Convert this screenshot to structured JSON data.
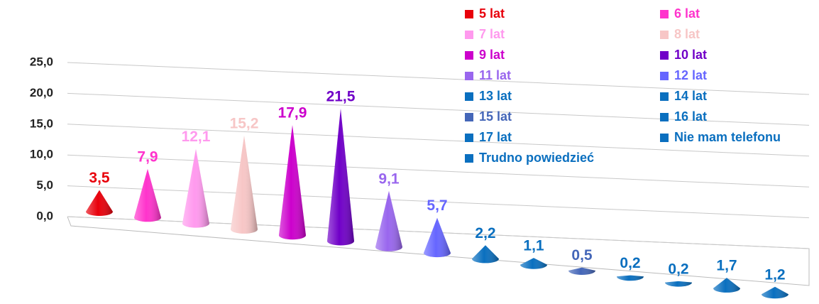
{
  "chart_data": {
    "type": "bar",
    "series": [
      {
        "name": "5 lat",
        "color": "#e8000b",
        "values": [
          3.5
        ],
        "value_labels": [
          "3,5"
        ]
      },
      {
        "name": "6 lat",
        "color": "#ff33cc",
        "values": [
          7.9
        ],
        "value_labels": [
          "7,9"
        ]
      },
      {
        "name": "7 lat",
        "color": "#ff99ee",
        "values": [
          12.1
        ],
        "value_labels": [
          "12,1"
        ]
      },
      {
        "name": "8 lat",
        "color": "#f7c6c6",
        "values": [
          15.2
        ],
        "value_labels": [
          "15,2"
        ]
      },
      {
        "name": "9 lat",
        "color": "#cc00cc",
        "values": [
          17.9
        ],
        "value_labels": [
          "17,9"
        ]
      },
      {
        "name": "10 lat",
        "color": "#7000c8",
        "values": [
          21.5
        ],
        "value_labels": [
          "21,5"
        ]
      },
      {
        "name": "11 lat",
        "color": "#9966ee",
        "values": [
          9.1
        ],
        "value_labels": [
          "9,1"
        ]
      },
      {
        "name": "12 lat",
        "color": "#6666ff",
        "values": [
          5.7
        ],
        "value_labels": [
          "5,7"
        ]
      },
      {
        "name": "13 lat",
        "color": "#0a6fbf",
        "values": [
          2.2
        ],
        "value_labels": [
          "2,2"
        ]
      },
      {
        "name": "14 lat",
        "color": "#0a6fbf",
        "values": [
          1.1
        ],
        "value_labels": [
          "1,1"
        ]
      },
      {
        "name": "15 lat",
        "color": "#4466b8",
        "values": [
          0.5
        ],
        "value_labels": [
          "0,5"
        ]
      },
      {
        "name": "16 lat",
        "color": "#0a6fbf",
        "values": [
          0.2
        ],
        "value_labels": [
          "0,2"
        ]
      },
      {
        "name": "17 lat",
        "color": "#0a6fbf",
        "values": [
          0.2
        ],
        "value_labels": [
          "0,2"
        ]
      },
      {
        "name": "Nie mam telefonu",
        "color": "#0a6fbf",
        "values": [
          1.7
        ],
        "value_labels": [
          "1,7"
        ]
      },
      {
        "name": "Trudno powiedzieć",
        "color": "#0a6fbf",
        "values": [
          1.2
        ],
        "value_labels": [
          "1,2"
        ]
      }
    ],
    "ylim": [
      0,
      25
    ],
    "yticks": [
      {
        "value": 0,
        "label": "0,0"
      },
      {
        "value": 5,
        "label": "5,0"
      },
      {
        "value": 10,
        "label": "10,0"
      },
      {
        "value": 15,
        "label": "15,0"
      },
      {
        "value": 20,
        "label": "20,0"
      },
      {
        "value": 25,
        "label": "25,0"
      }
    ],
    "grid": true
  }
}
